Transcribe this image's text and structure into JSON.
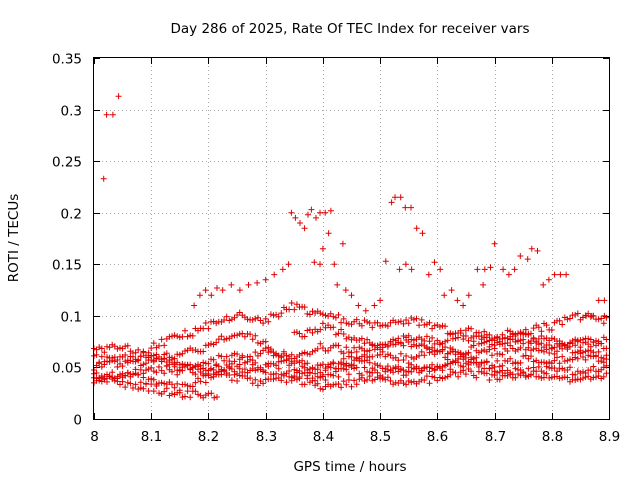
{
  "chart_data": {
    "type": "scatter",
    "title": "Day 286 of 2025, Rate Of TEC Index for receiver vars",
    "xlabel": "GPS time / hours",
    "ylabel": "ROTI / TECUs",
    "xlim": [
      8.0,
      8.9
    ],
    "ylim": [
      0,
      0.35
    ],
    "xticks": [
      "8",
      "8.1",
      "8.2",
      "8.3",
      "8.4",
      "8.5",
      "8.6",
      "8.7",
      "8.8",
      "8.9"
    ],
    "yticks": [
      "0",
      "0.05",
      "0.1",
      "0.15",
      "0.2",
      "0.25",
      "0.3",
      "0.35"
    ],
    "grid": true,
    "marker": "+",
    "color": "#e00000",
    "band_paths": [
      [
        [
          8.0,
          0.044
        ],
        [
          8.05,
          0.04
        ],
        [
          8.1,
          0.05
        ],
        [
          8.15,
          0.046
        ],
        [
          8.2,
          0.055
        ],
        [
          8.25,
          0.062
        ],
        [
          8.3,
          0.048
        ],
        [
          8.35,
          0.043
        ],
        [
          8.4,
          0.04
        ],
        [
          8.45,
          0.048
        ],
        [
          8.5,
          0.044
        ],
        [
          8.55,
          0.05
        ],
        [
          8.6,
          0.047
        ],
        [
          8.65,
          0.055
        ],
        [
          8.7,
          0.052
        ],
        [
          8.75,
          0.058
        ],
        [
          8.8,
          0.055
        ],
        [
          8.85,
          0.06
        ],
        [
          8.9,
          0.058
        ]
      ],
      [
        [
          8.0,
          0.06
        ],
        [
          8.05,
          0.052
        ],
        [
          8.1,
          0.058
        ],
        [
          8.15,
          0.062
        ],
        [
          8.2,
          0.07
        ],
        [
          8.25,
          0.085
        ],
        [
          8.3,
          0.075
        ],
        [
          8.35,
          0.05
        ],
        [
          8.4,
          0.045
        ],
        [
          8.45,
          0.06
        ],
        [
          8.5,
          0.065
        ],
        [
          8.55,
          0.058
        ],
        [
          8.6,
          0.07
        ],
        [
          8.65,
          0.06
        ],
        [
          8.7,
          0.065
        ],
        [
          8.75,
          0.07
        ],
        [
          8.8,
          0.065
        ],
        [
          8.85,
          0.072
        ],
        [
          8.9,
          0.07
        ]
      ],
      [
        [
          8.0,
          0.038
        ],
        [
          8.05,
          0.045
        ],
        [
          8.1,
          0.035
        ],
        [
          8.15,
          0.03
        ],
        [
          8.2,
          0.04
        ],
        [
          8.25,
          0.055
        ],
        [
          8.3,
          0.065
        ],
        [
          8.35,
          0.06
        ],
        [
          8.4,
          0.07
        ],
        [
          8.45,
          0.065
        ],
        [
          8.5,
          0.07
        ],
        [
          8.55,
          0.075
        ],
        [
          8.6,
          0.065
        ],
        [
          8.65,
          0.06
        ],
        [
          8.7,
          0.048
        ],
        [
          8.75,
          0.045
        ],
        [
          8.8,
          0.05
        ],
        [
          8.85,
          0.045
        ],
        [
          8.9,
          0.05
        ]
      ],
      [
        [
          8.0,
          0.05
        ],
        [
          8.05,
          0.06
        ],
        [
          8.1,
          0.062
        ],
        [
          8.15,
          0.055
        ],
        [
          8.2,
          0.05
        ],
        [
          8.25,
          0.045
        ],
        [
          8.3,
          0.05
        ],
        [
          8.35,
          0.055
        ],
        [
          8.4,
          0.05
        ],
        [
          8.45,
          0.055
        ],
        [
          8.5,
          0.052
        ],
        [
          8.55,
          0.045
        ],
        [
          8.6,
          0.05
        ],
        [
          8.65,
          0.065
        ],
        [
          8.7,
          0.075
        ],
        [
          8.75,
          0.08
        ],
        [
          8.8,
          0.075
        ],
        [
          8.85,
          0.065
        ],
        [
          8.9,
          0.06
        ]
      ],
      [
        [
          8.0,
          0.065
        ],
        [
          8.05,
          0.07
        ],
        [
          8.1,
          0.06
        ],
        [
          8.15,
          0.05
        ],
        [
          8.2,
          0.045
        ],
        [
          8.25,
          0.04
        ],
        [
          8.3,
          0.035
        ],
        [
          8.35,
          0.04
        ],
        [
          8.4,
          0.03
        ],
        [
          8.45,
          0.035
        ],
        [
          8.5,
          0.04
        ],
        [
          8.55,
          0.035
        ],
        [
          8.6,
          0.04
        ],
        [
          8.65,
          0.045
        ],
        [
          8.7,
          0.04
        ],
        [
          8.75,
          0.045
        ],
        [
          8.8,
          0.04
        ],
        [
          8.85,
          0.035
        ],
        [
          8.9,
          0.045
        ]
      ],
      [
        [
          8.0,
          0.04
        ],
        [
          8.05,
          0.035
        ],
        [
          8.1,
          0.03
        ],
        [
          8.15,
          0.025
        ],
        [
          8.2,
          0.022
        ],
        [
          8.22,
          0.02
        ]
      ],
      [
        [
          8.1,
          0.07
        ],
        [
          8.15,
          0.08
        ],
        [
          8.2,
          0.09
        ],
        [
          8.25,
          0.1
        ],
        [
          8.3,
          0.095
        ],
        [
          8.35,
          0.11
        ],
        [
          8.4,
          0.1
        ],
        [
          8.45,
          0.095
        ],
        [
          8.5,
          0.09
        ],
        [
          8.55,
          0.095
        ],
        [
          8.6,
          0.09
        ],
        [
          8.65,
          0.08
        ],
        [
          8.7,
          0.075
        ],
        [
          8.75,
          0.08
        ],
        [
          8.8,
          0.07
        ],
        [
          8.85,
          0.08
        ],
        [
          8.9,
          0.075
        ]
      ],
      [
        [
          8.35,
          0.08
        ],
        [
          8.4,
          0.09
        ],
        [
          8.45,
          0.08
        ],
        [
          8.5,
          0.07
        ],
        [
          8.55,
          0.08
        ],
        [
          8.6,
          0.075
        ],
        [
          8.65,
          0.085
        ],
        [
          8.7,
          0.08
        ],
        [
          8.75,
          0.085
        ],
        [
          8.8,
          0.09
        ],
        [
          8.85,
          0.1
        ],
        [
          8.9,
          0.095
        ]
      ]
    ],
    "scatter_points": [
      [
        8.017,
        0.233
      ],
      [
        8.022,
        0.295
      ],
      [
        8.033,
        0.295
      ],
      [
        8.043,
        0.313
      ],
      [
        8.175,
        0.11
      ],
      [
        8.185,
        0.12
      ],
      [
        8.195,
        0.125
      ],
      [
        8.205,
        0.12
      ],
      [
        8.215,
        0.127
      ],
      [
        8.225,
        0.125
      ],
      [
        8.24,
        0.13
      ],
      [
        8.255,
        0.125
      ],
      [
        8.27,
        0.13
      ],
      [
        8.285,
        0.132
      ],
      [
        8.3,
        0.135
      ],
      [
        8.315,
        0.14
      ],
      [
        8.33,
        0.145
      ],
      [
        8.34,
        0.15
      ],
      [
        8.345,
        0.2
      ],
      [
        8.352,
        0.195
      ],
      [
        8.36,
        0.19
      ],
      [
        8.368,
        0.185
      ],
      [
        8.374,
        0.198
      ],
      [
        8.38,
        0.203
      ],
      [
        8.388,
        0.195
      ],
      [
        8.395,
        0.2
      ],
      [
        8.404,
        0.2
      ],
      [
        8.414,
        0.202
      ],
      [
        8.385,
        0.152
      ],
      [
        8.395,
        0.15
      ],
      [
        8.4,
        0.165
      ],
      [
        8.41,
        0.18
      ],
      [
        8.42,
        0.15
      ],
      [
        8.435,
        0.17
      ],
      [
        8.425,
        0.13
      ],
      [
        8.44,
        0.125
      ],
      [
        8.45,
        0.12
      ],
      [
        8.462,
        0.11
      ],
      [
        8.475,
        0.105
      ],
      [
        8.49,
        0.11
      ],
      [
        8.5,
        0.115
      ],
      [
        8.51,
        0.153
      ],
      [
        8.52,
        0.21
      ],
      [
        8.526,
        0.215
      ],
      [
        8.536,
        0.215
      ],
      [
        8.544,
        0.205
      ],
      [
        8.554,
        0.205
      ],
      [
        8.564,
        0.185
      ],
      [
        8.574,
        0.18
      ],
      [
        8.534,
        0.145
      ],
      [
        8.545,
        0.15
      ],
      [
        8.555,
        0.145
      ],
      [
        8.585,
        0.14
      ],
      [
        8.595,
        0.152
      ],
      [
        8.605,
        0.145
      ],
      [
        8.612,
        0.12
      ],
      [
        8.625,
        0.125
      ],
      [
        8.635,
        0.115
      ],
      [
        8.645,
        0.11
      ],
      [
        8.655,
        0.12
      ],
      [
        8.67,
        0.145
      ],
      [
        8.683,
        0.145
      ],
      [
        8.693,
        0.147
      ],
      [
        8.7,
        0.17
      ],
      [
        8.715,
        0.145
      ],
      [
        8.725,
        0.14
      ],
      [
        8.735,
        0.145
      ],
      [
        8.745,
        0.158
      ],
      [
        8.758,
        0.155
      ],
      [
        8.765,
        0.165
      ],
      [
        8.775,
        0.163
      ],
      [
        8.785,
        0.13
      ],
      [
        8.795,
        0.135
      ],
      [
        8.805,
        0.14
      ],
      [
        8.815,
        0.14
      ],
      [
        8.825,
        0.14
      ],
      [
        8.68,
        0.13
      ],
      [
        8.882,
        0.115
      ],
      [
        8.892,
        0.115
      ],
      [
        8.892,
        0.1
      ],
      [
        8.86,
        0.1
      ],
      [
        8.87,
        0.1
      ]
    ]
  }
}
